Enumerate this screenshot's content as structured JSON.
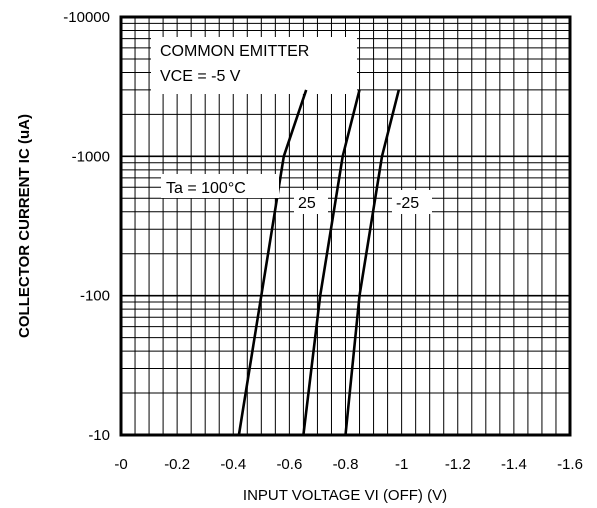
{
  "chart_data": {
    "type": "line",
    "xlabel": "INPUT VOLTAGE   VI (OFF) (V)",
    "ylabel": "COLLECTOR CURRENT  IC (uA)",
    "x_ticks": [
      "-0",
      "-0.2",
      "-0.4",
      "-0.6",
      "-0.8",
      "-1",
      "-1.2",
      "-1.4",
      "-1.6"
    ],
    "y_ticks": [
      "-10000",
      "-1000",
      "-100",
      "-10"
    ],
    "xlim": [
      0,
      -1.6
    ],
    "ylim": [
      -10,
      -10000
    ],
    "y_scale": "log",
    "grid": true,
    "annotations": {
      "line1": "COMMON EMITTER",
      "line2": "VCE = -5 V"
    },
    "series": [
      {
        "name": "Ta = 100°C",
        "x": [
          -0.42,
          -0.5,
          -0.58,
          -0.66
        ],
        "y": [
          -10,
          -100,
          -1000,
          -3000
        ]
      },
      {
        "name": "25",
        "x": [
          -0.65,
          -0.71,
          -0.79,
          -0.85
        ],
        "y": [
          -10,
          -100,
          -1000,
          -3000
        ]
      },
      {
        "name": "-25",
        "x": [
          -0.8,
          -0.85,
          -0.93,
          -0.99
        ],
        "y": [
          -10,
          -100,
          -1000,
          -3000
        ]
      }
    ]
  }
}
